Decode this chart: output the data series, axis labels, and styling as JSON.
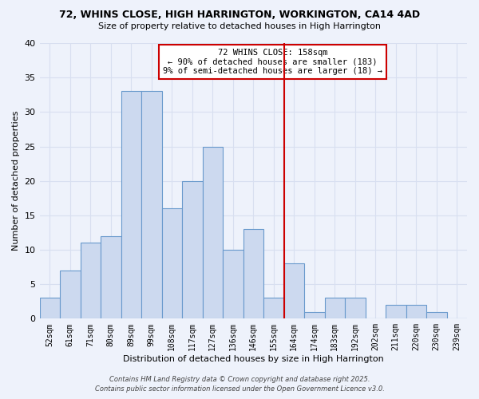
{
  "title1": "72, WHINS CLOSE, HIGH HARRINGTON, WORKINGTON, CA14 4AD",
  "title2": "Size of property relative to detached houses in High Harrington",
  "xlabel": "Distribution of detached houses by size in High Harrington",
  "ylabel": "Number of detached properties",
  "bin_labels": [
    "52sqm",
    "61sqm",
    "71sqm",
    "80sqm",
    "89sqm",
    "99sqm",
    "108sqm",
    "117sqm",
    "127sqm",
    "136sqm",
    "146sqm",
    "155sqm",
    "164sqm",
    "174sqm",
    "183sqm",
    "192sqm",
    "202sqm",
    "211sqm",
    "220sqm",
    "230sqm",
    "239sqm"
  ],
  "bar_values": [
    3,
    7,
    11,
    12,
    33,
    33,
    16,
    20,
    25,
    10,
    13,
    3,
    8,
    1,
    3,
    3,
    0,
    2,
    2,
    1,
    0
  ],
  "bar_color": "#ccd9ef",
  "bar_edge_color": "#6899cc",
  "vline_idx": 11,
  "vline_color": "#cc0000",
  "annotation_title": "72 WHINS CLOSE: 158sqm",
  "annotation_line1": "← 90% of detached houses are smaller (183)",
  "annotation_line2": "9% of semi-detached houses are larger (18) →",
  "annotation_box_color": "#ffffff",
  "annotation_box_edge": "#cc0000",
  "ylim": [
    0,
    40
  ],
  "yticks": [
    0,
    5,
    10,
    15,
    20,
    25,
    30,
    35,
    40
  ],
  "footer1": "Contains HM Land Registry data © Crown copyright and database right 2025.",
  "footer2": "Contains public sector information licensed under the Open Government Licence v3.0.",
  "bg_color": "#eef2fb",
  "grid_color": "#d8dff0"
}
